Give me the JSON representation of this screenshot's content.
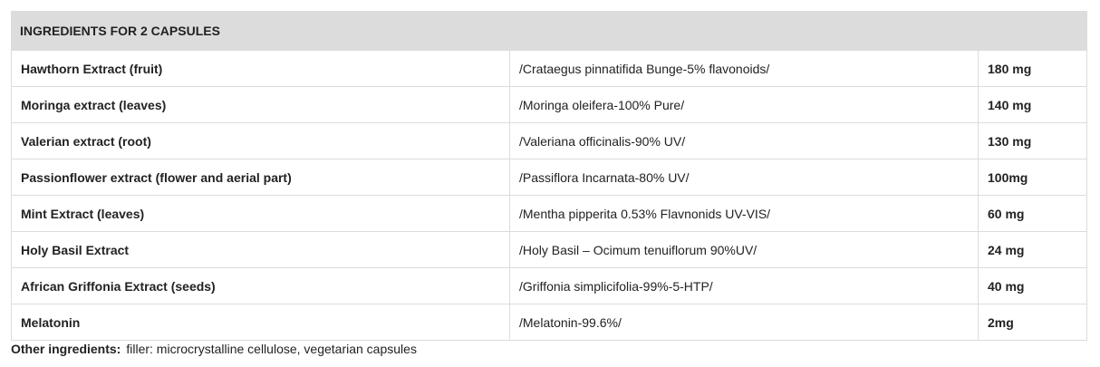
{
  "header": {
    "title": "INGREDIENTS FOR 2 CAPSULES"
  },
  "table": {
    "rows": [
      [
        "Hawthorn Extract (fruit)",
        "/Crataegus pinnatifida Bunge-5% flavonoids/",
        "180 mg"
      ],
      [
        "Moringa extract (leaves)",
        "/Moringa oleifera-100% Pure/",
        "140 mg"
      ],
      [
        "Valerian extract (root)",
        "/Valeriana officinalis-90% UV/",
        "130 mg"
      ],
      [
        "Passionflower extract (flower and aerial part)",
        "/Passiflora Incarnata-80% UV/",
        "100mg"
      ],
      [
        "Mint Extract (leaves)",
        "/Mentha pipperita 0.53% Flavnonids UV-VIS/",
        "60 mg"
      ],
      [
        "Holy Basil Extract",
        "/Holy Basil – Ocimum tenuiflorum 90%UV/",
        "24 mg"
      ],
      [
        "African Griffonia Extract (seeds)",
        "/Griffonia simplicifolia-99%-5-HTP/",
        "40 mg"
      ],
      [
        "Melatonin",
        "/Melatonin-99.6%/",
        "2mg"
      ]
    ]
  },
  "footer": {
    "label": "Other ingredients:",
    "text": "filler: microcrystalline cellulose, vegetarian capsules"
  }
}
